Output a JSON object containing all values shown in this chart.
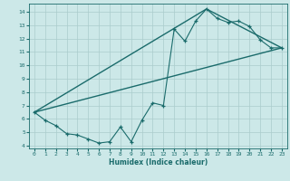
{
  "xlabel": "Humidex (Indice chaleur)",
  "ylabel": "",
  "background_color": "#cce8e8",
  "line_color": "#1a6b6b",
  "grid_color": "#aacccc",
  "xlim": [
    -0.5,
    23.5
  ],
  "ylim": [
    3.8,
    14.6
  ],
  "xticks": [
    0,
    1,
    2,
    3,
    4,
    5,
    6,
    7,
    8,
    9,
    10,
    11,
    12,
    13,
    14,
    15,
    16,
    17,
    18,
    19,
    20,
    21,
    22,
    23
  ],
  "yticks": [
    4,
    5,
    6,
    7,
    8,
    9,
    10,
    11,
    12,
    13,
    14
  ],
  "data_x": [
    0,
    1,
    2,
    3,
    4,
    5,
    6,
    7,
    8,
    9,
    10,
    11,
    12,
    13,
    14,
    15,
    16,
    17,
    18,
    19,
    20,
    21,
    22,
    23
  ],
  "data_y": [
    6.5,
    5.9,
    5.5,
    4.9,
    4.8,
    4.5,
    4.2,
    4.3,
    5.4,
    4.3,
    5.9,
    7.2,
    7.0,
    12.7,
    11.8,
    13.3,
    14.2,
    13.5,
    13.2,
    13.3,
    12.9,
    11.9,
    11.3,
    11.3
  ],
  "line1_x": [
    0,
    23
  ],
  "line1_y": [
    6.5,
    11.3
  ],
  "line2_x": [
    0,
    16,
    23
  ],
  "line2_y": [
    6.5,
    14.2,
    11.3
  ]
}
